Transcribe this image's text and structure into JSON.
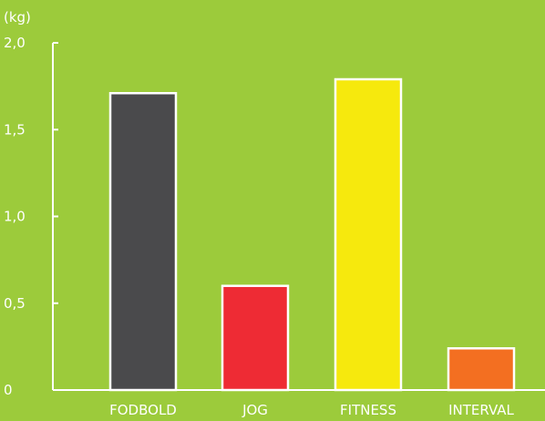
{
  "chart_data": {
    "type": "bar",
    "ylabel": "(kg)",
    "ylim": [
      0,
      2.0
    ],
    "yticks": [
      {
        "value": 0,
        "label": "0"
      },
      {
        "value": 0.5,
        "label": "0,5"
      },
      {
        "value": 1.0,
        "label": "1,0"
      },
      {
        "value": 1.5,
        "label": "1,5"
      },
      {
        "value": 2.0,
        "label": "2,0"
      }
    ],
    "categories": [
      "FODBOLD",
      "JOG",
      "FITNESS",
      "INTERVAL"
    ],
    "values": [
      1.71,
      0.6,
      1.79,
      0.24
    ],
    "colors": [
      "#4a4a4c",
      "#ee2b34",
      "#f6e90d",
      "#f36f21"
    ],
    "background": "#9ccb3b",
    "bar_outline": "#ffffff",
    "grid": false
  }
}
